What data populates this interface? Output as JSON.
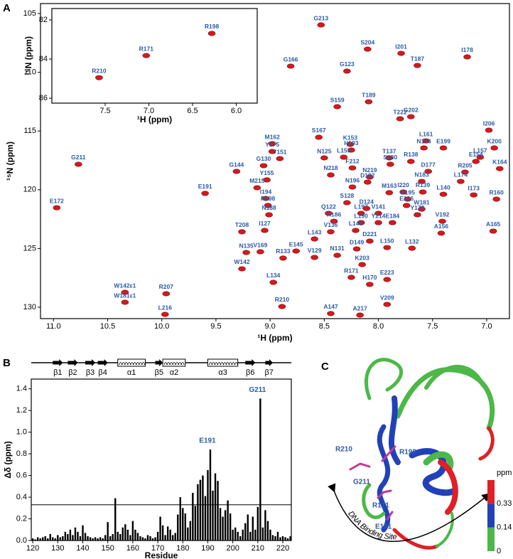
{
  "panels": [
    "A",
    "B",
    "C"
  ],
  "chart_data": [
    {
      "type": "spectrum",
      "x_label": "¹H (ppm)",
      "y_label": "¹⁵N (ppm)",
      "color": "#d7191c",
      "xlim": [
        11.12,
        6.79
      ],
      "ylim": [
        130.97,
        104.15
      ],
      "xticks": [
        {
          "value": 11,
          "label": "11.0"
        },
        10.5,
        {
          "value": 10,
          "label": "10.0"
        },
        9.5,
        {
          "value": 9,
          "label": "9.0"
        },
        8.5,
        {
          "value": 8,
          "label": "8.0"
        },
        7.5,
        {
          "value": 7,
          "label": "7.0"
        }
      ],
      "yticks": [
        105,
        110,
        115,
        120,
        125,
        130
      ],
      "points": [
        {
          "label": "G213",
          "x": 8.53,
          "y": 105.97
        },
        {
          "label": "I201",
          "x": 7.79,
          "y": 108.39
        },
        {
          "label": "S204",
          "x": 8.1,
          "y": 108.03
        },
        {
          "label": "G166",
          "x": 8.81,
          "y": 109.48
        },
        {
          "label": "G123",
          "x": 8.29,
          "y": 109.9
        },
        {
          "label": "T187",
          "x": 7.64,
          "y": 109.42
        },
        {
          "label": "I178",
          "x": 7.18,
          "y": 108.69
        },
        {
          "label": "T189",
          "x": 8.09,
          "y": 112.51
        },
        {
          "label": "S159",
          "x": 8.38,
          "y": 112.93
        },
        {
          "label": "T222",
          "x": 7.8,
          "y": 113.96
        },
        {
          "label": "G202",
          "x": 7.7,
          "y": 113.78
        },
        {
          "label": "I206",
          "x": 6.98,
          "y": 114.93
        },
        {
          "label": "M162",
          "x": 8.98,
          "y": 116.08
        },
        {
          "label": "S167",
          "x": 8.55,
          "y": 115.53
        },
        {
          "label": "K153",
          "x": 8.26,
          "y": 116.14
        },
        {
          "label": "L161",
          "x": 7.56,
          "y": 115.84
        },
        {
          "label": "N176",
          "x": 7.58,
          "y": 116.44
        },
        {
          "label": "E199",
          "x": 7.4,
          "y": 116.44
        },
        {
          "label": "K200",
          "x": 6.93,
          "y": 116.44
        },
        {
          "label": "Y175",
          "x": 8.98,
          "y": 116.74
        },
        {
          "label": "H193",
          "x": 8.25,
          "y": 116.62
        },
        {
          "label": "T151",
          "x": 8.91,
          "y": 117.35
        },
        {
          "label": "L159",
          "x": 8.32,
          "y": 117.23
        },
        {
          "label": "N125",
          "x": 8.5,
          "y": 117.29
        },
        {
          "label": "T137",
          "x": 7.9,
          "y": 117.29
        },
        {
          "label": "L157",
          "x": 7.06,
          "y": 117.23
        },
        {
          "label": "E154",
          "x": 7.1,
          "y": 117.59
        },
        {
          "label": "G130",
          "x": 9.06,
          "y": 117.95
        },
        {
          "label": "R138",
          "x": 7.7,
          "y": 117.59
        },
        {
          "label": "S180",
          "x": 7.89,
          "y": 117.83
        },
        {
          "label": "D177",
          "x": 7.54,
          "y": 118.44
        },
        {
          "label": "K164",
          "x": 6.88,
          "y": 118.2
        },
        {
          "label": "G144",
          "x": 9.31,
          "y": 118.44
        },
        {
          "label": "N218",
          "x": 8.44,
          "y": 118.74
        },
        {
          "label": "F212",
          "x": 8.24,
          "y": 118.14
        },
        {
          "label": "N219",
          "x": 8.08,
          "y": 118.92
        },
        {
          "label": "R205",
          "x": 7.2,
          "y": 118.5
        },
        {
          "label": "Y155",
          "x": 9.03,
          "y": 119.16
        },
        {
          "label": "M215",
          "x": 9.12,
          "y": 119.83
        },
        {
          "label": "D182",
          "x": 8.1,
          "y": 119.35
        },
        {
          "label": "N183",
          "x": 7.6,
          "y": 119.29
        },
        {
          "label": "L174",
          "x": 7.24,
          "y": 119.29
        },
        {
          "label": "I173",
          "x": 7.12,
          "y": 120.44
        },
        {
          "label": "E191",
          "x": 9.6,
          "y": 120.31
        },
        {
          "label": "R139",
          "x": 7.59,
          "y": 120.19
        },
        {
          "label": "I220",
          "x": 7.77,
          "y": 120.19
        },
        {
          "label": "M163",
          "x": 7.9,
          "y": 120.25
        },
        {
          "label": "L140",
          "x": 7.4,
          "y": 120.38
        },
        {
          "label": "I194",
          "x": 9.04,
          "y": 120.74
        },
        {
          "label": "S128",
          "x": 8.29,
          "y": 121.1
        },
        {
          "label": "N196",
          "x": 8.24,
          "y": 119.77
        },
        {
          "label": "H195",
          "x": 7.73,
          "y": 120.8
        },
        {
          "label": "E126",
          "x": 7.74,
          "y": 121.34
        },
        {
          "label": "R198",
          "x": 9.02,
          "y": 121.34
        },
        {
          "label": "W181",
          "x": 7.6,
          "y": 121.65
        },
        {
          "label": "Y179",
          "x": 7.64,
          "y": 122.13
        },
        {
          "label": "R160",
          "x": 6.91,
          "y": 120.8
        },
        {
          "label": "G211",
          "x": 10.77,
          "y": 117.83
        },
        {
          "label": "E172",
          "x": 10.97,
          "y": 121.53
        },
        {
          "label": "N188",
          "x": 9.01,
          "y": 122.13
        },
        {
          "label": "Q122",
          "x": 8.46,
          "y": 122.01
        },
        {
          "label": "L197",
          "x": 8.16,
          "y": 122.01
        },
        {
          "label": "V141",
          "x": 8.0,
          "y": 122.01
        },
        {
          "label": "D124",
          "x": 8.11,
          "y": 121.59
        },
        {
          "label": "A186",
          "x": 8.41,
          "y": 122.68
        },
        {
          "label": "L190",
          "x": 8.16,
          "y": 122.8
        },
        {
          "label": "Y214",
          "x": 8.0,
          "y": 122.8
        },
        {
          "label": "E184",
          "x": 7.87,
          "y": 122.8
        },
        {
          "label": "V192",
          "x": 7.41,
          "y": 122.68
        },
        {
          "label": "I127",
          "x": 9.05,
          "y": 123.46
        },
        {
          "label": "V136",
          "x": 8.44,
          "y": 123.58
        },
        {
          "label": "L148",
          "x": 8.21,
          "y": 123.46
        },
        {
          "label": "A156",
          "x": 7.42,
          "y": 123.7
        },
        {
          "label": "L143",
          "x": 8.59,
          "y": 124.19
        },
        {
          "label": "D221",
          "x": 8.08,
          "y": 124.37
        },
        {
          "label": "T208",
          "x": 9.26,
          "y": 123.58
        },
        {
          "label": "A165",
          "x": 6.94,
          "y": 123.52
        },
        {
          "label": "N135",
          "x": 9.22,
          "y": 125.34
        },
        {
          "label": "V169",
          "x": 9.09,
          "y": 125.28
        },
        {
          "label": "R133",
          "x": 8.88,
          "y": 125.82
        },
        {
          "label": "E145",
          "x": 8.76,
          "y": 125.22
        },
        {
          "label": "V129",
          "x": 8.59,
          "y": 125.76
        },
        {
          "label": "N131",
          "x": 8.38,
          "y": 125.58
        },
        {
          "label": "L150",
          "x": 7.92,
          "y": 124.92
        },
        {
          "label": "L132",
          "x": 7.69,
          "y": 124.98
        },
        {
          "label": "D149",
          "x": 8.2,
          "y": 125.04
        },
        {
          "label": "K203",
          "x": 8.15,
          "y": 126.37
        },
        {
          "label": "W142",
          "x": 9.26,
          "y": 126.73
        },
        {
          "label": "R171",
          "x": 8.25,
          "y": 127.46
        },
        {
          "label": "H170",
          "x": 8.08,
          "y": 128.06
        },
        {
          "label": "E223",
          "x": 7.92,
          "y": 127.64
        },
        {
          "label": "L134",
          "x": 8.97,
          "y": 127.88
        },
        {
          "label": "W142ε1",
          "x": 10.34,
          "y": 128.73
        },
        {
          "label": "W181ε1",
          "x": 10.34,
          "y": 129.58
        },
        {
          "label": "R207",
          "x": 9.96,
          "y": 128.85
        },
        {
          "label": "L216",
          "x": 9.97,
          "y": 130.61
        },
        {
          "label": "R210",
          "x": 8.89,
          "y": 129.94
        },
        {
          "label": "A147",
          "x": 8.44,
          "y": 130.54
        },
        {
          "label": "A217",
          "x": 8.17,
          "y": 130.67
        },
        {
          "label": "V209",
          "x": 7.92,
          "y": 129.76
        }
      ]
    },
    {
      "type": "spectrum",
      "x_label": "¹H (ppm)",
      "y_label": "¹⁵N (ppm)",
      "color": "#d7191c",
      "xlim": [
        8.11,
        5.76
      ],
      "ylim": [
        86.25,
        81.42
      ],
      "xticks": [
        7.5,
        {
          "value": 7,
          "label": "7.0"
        },
        6.5,
        {
          "value": 6,
          "label": "6.0"
        }
      ],
      "yticks": [
        82,
        84,
        86
      ],
      "points": [
        {
          "label": "R171",
          "x": 7.03,
          "y": 83.82
        },
        {
          "label": "R198",
          "x": 6.28,
          "y": 82.69
        },
        {
          "label": "R210",
          "x": 7.57,
          "y": 84.95
        }
      ]
    },
    {
      "type": "bar",
      "x_label": "Residue",
      "y_label": "Δδ (ppm)",
      "color": "#000000",
      "xlim": [
        119.4,
        223.4
      ],
      "ylim": [
        0,
        1.49
      ],
      "xticks": [
        120,
        130,
        140,
        150,
        160,
        170,
        180,
        190,
        200,
        210,
        220
      ],
      "yticks": [
        {
          "value": 0,
          "label": "0.0"
        },
        0.2,
        0.4,
        0.6,
        0.8,
        {
          "value": 1,
          "label": "1.0"
        },
        1.2,
        1.4
      ],
      "threshold": 0.33,
      "x": [
        120,
        121,
        122,
        123,
        124,
        125,
        126,
        127,
        128,
        129,
        130,
        131,
        132,
        133,
        134,
        135,
        136,
        137,
        138,
        139,
        140,
        141,
        142,
        143,
        144,
        145,
        146,
        147,
        148,
        149,
        150,
        151,
        152,
        153,
        154,
        155,
        156,
        157,
        158,
        159,
        160,
        161,
        162,
        163,
        164,
        165,
        166,
        167,
        168,
        169,
        170,
        171,
        172,
        173,
        174,
        175,
        176,
        177,
        178,
        179,
        180,
        181,
        182,
        183,
        184,
        185,
        186,
        187,
        188,
        189,
        190,
        191,
        192,
        193,
        194,
        195,
        196,
        197,
        198,
        199,
        200,
        201,
        202,
        203,
        204,
        205,
        206,
        207,
        208,
        209,
        210,
        211,
        212,
        213,
        214,
        215,
        216,
        217,
        218,
        219,
        220,
        221,
        222,
        223
      ],
      "values": [
        0.02,
        0.01,
        0.03,
        0.02,
        0.03,
        0.04,
        0.02,
        0.06,
        0.03,
        0.02,
        0.05,
        0.03,
        0.04,
        0.08,
        0.06,
        0.1,
        0.05,
        0.12,
        0.08,
        0.04,
        0.14,
        0.07,
        0.04,
        0.03,
        0.02,
        0.03,
        0.02,
        0.03,
        0.02,
        0.05,
        0.17,
        0.04,
        0.06,
        0.39,
        0.08,
        0.06,
        0.12,
        0.15,
        0.1,
        0.05,
        0.18,
        0.1,
        0.07,
        0.04,
        0.03,
        0.02,
        0.05,
        0.04,
        0.02,
        0.03,
        0.08,
        0.22,
        0.14,
        0.05,
        0.13,
        0.1,
        0.05,
        0.07,
        0.24,
        0.4,
        0.3,
        0.25,
        0.12,
        0.18,
        0.44,
        0.32,
        0.52,
        0.56,
        0.6,
        0.41,
        0.65,
        0.84,
        0.46,
        0.62,
        0.55,
        0.3,
        0.22,
        0.28,
        0.37,
        0.25,
        0.1,
        0.12,
        0.08,
        0.04,
        0.1,
        0.16,
        0.24,
        0.08,
        0.22,
        0.1,
        0.31,
        1.31,
        0.12,
        0.28,
        0.18,
        0.1,
        0.05,
        0.04,
        0.08,
        0.03,
        0.04,
        0.03,
        0.02,
        0.04
      ],
      "annotations": [
        {
          "text": "E191",
          "residue": 191
        },
        {
          "text": "G211",
          "residue": 211
        }
      ],
      "secondary_structure": [
        {
          "label": "β1",
          "kind": "strand",
          "start": 128,
          "end": 132
        },
        {
          "label": "β2",
          "kind": "strand",
          "start": 134,
          "end": 138
        },
        {
          "label": "β3",
          "kind": "strand",
          "start": 141,
          "end": 145
        },
        {
          "label": "β4",
          "kind": "strand",
          "start": 146,
          "end": 150
        },
        {
          "label": "α1",
          "kind": "helix",
          "start": 154,
          "end": 165
        },
        {
          "label": "β5",
          "kind": "strand",
          "start": 169,
          "end": 172
        },
        {
          "label": "α2",
          "kind": "helix",
          "start": 172,
          "end": 181
        },
        {
          "label": "α3",
          "kind": "helix",
          "start": 190,
          "end": 202
        },
        {
          "label": "β6",
          "kind": "strand",
          "start": 205,
          "end": 209
        },
        {
          "label": "β7",
          "kind": "strand",
          "start": 213,
          "end": 216
        }
      ]
    }
  ],
  "structure": {
    "labels": [
      "R210",
      "R198",
      "G211",
      "R171",
      "E191"
    ],
    "annotation": "DNA Binding Site",
    "colorbar": {
      "title": "ppm",
      "ticks": [
        0,
        0.14,
        0.33
      ],
      "colors": [
        "#4cb848",
        "#2141b8",
        "#e01f26"
      ]
    }
  }
}
